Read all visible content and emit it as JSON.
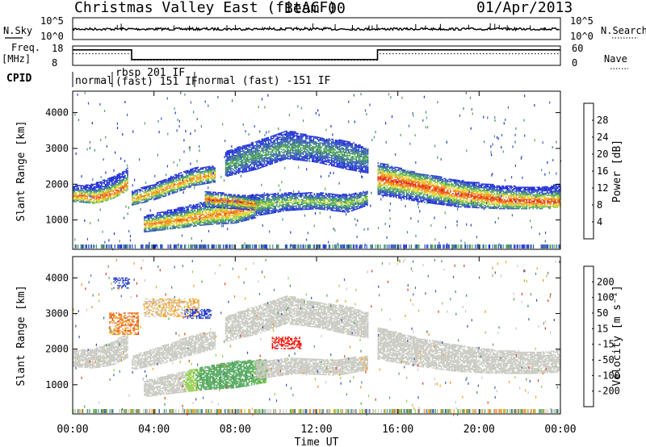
{
  "header": {
    "title": "Christmas Valley East (fitACF)",
    "beam": "Beam 00",
    "date": "01/Apr/2013"
  },
  "noise_panel": {
    "left_label": "N.Sky",
    "right_label": "N.Search",
    "left_ticks": [
      "10^5",
      "10^0"
    ],
    "right_ticks": [
      "10^5",
      "10^0"
    ]
  },
  "freq_panel": {
    "left_label_line1": "Freq.",
    "left_label_line2": "[MHz]",
    "right_label": "Nave",
    "left_ticks": [
      "18",
      "8"
    ],
    "right_ticks": [
      "60",
      "0"
    ],
    "freq_series": {
      "x": [
        0,
        2.9,
        2.9,
        15.0,
        15.0,
        24.0
      ],
      "y": [
        16,
        16,
        11,
        11,
        16,
        16
      ]
    },
    "nave_series": {
      "x": [
        0,
        2.9,
        2.9,
        15.0,
        15.0,
        24.0
      ],
      "y": [
        36,
        36,
        16,
        16,
        36,
        36
      ]
    }
  },
  "cpid_panel": {
    "label": "CPID",
    "segments": [
      {
        "label": "normal",
        "start": 0.0,
        "end": 2.7
      },
      {
        "label": "rbsp 201 IF",
        "start": 2.7,
        "end": 4.1,
        "second_line": "(fast) 151 IF"
      },
      {
        "label": "normal (fast) -151 IF",
        "start": 6.0,
        "end": 24.0
      }
    ]
  },
  "chart_data": [
    {
      "type": "heatmap",
      "name": "power",
      "ylabel": "Slant Range [km]",
      "xlabel": "Time UT",
      "ylim": [
        180,
        4600
      ],
      "yticks": [
        "1000",
        "2000",
        "3000",
        "4000"
      ],
      "xticks": [
        "00:00",
        "04:00",
        "08:00",
        "12:00",
        "16:00",
        "20:00",
        "00:00"
      ],
      "xlim": [
        0,
        24
      ],
      "colorbar": {
        "label": "Power [dB]",
        "ticks": [
          "4",
          "8",
          "12",
          "16",
          "20",
          "24",
          "28"
        ],
        "range": [
          0,
          32
        ],
        "colors": [
          "#1f2fd6",
          "#2f4fc8",
          "#3b63a8",
          "#3f8f74",
          "#4fa65a",
          "#8fcf4a",
          "#f2dd2e",
          "#f6b020",
          "#f08a1a",
          "#ea5a16",
          "#e2241a",
          "#ff0000"
        ]
      },
      "bands": [
        {
          "x": [
            0.0,
            0.5,
            1.0,
            1.5,
            2.0,
            2.5,
            2.7
          ],
          "y_low": [
            1500,
            1480,
            1450,
            1500,
            1600,
            1750,
            1850
          ],
          "y_high": [
            1950,
            1950,
            2000,
            2100,
            2200,
            2350,
            2450
          ],
          "peak": [
            1650,
            1650,
            1600,
            1650,
            1750,
            1900,
            2000
          ],
          "max_db": 26
        },
        {
          "x": [
            2.9,
            4.0,
            5.0,
            6.0,
            7.0
          ],
          "y_low": [
            1400,
            1550,
            1750,
            1950,
            2050
          ],
          "y_high": [
            1800,
            2000,
            2250,
            2450,
            2500
          ],
          "peak": [
            1550,
            1750,
            1950,
            2150,
            2250
          ],
          "max_db": 24
        },
        {
          "x": [
            3.5,
            5.0,
            6.5,
            8.0,
            9.0
          ],
          "y_low": [
            650,
            750,
            850,
            900,
            1050
          ],
          "y_high": [
            1100,
            1300,
            1500,
            1650,
            1700
          ],
          "peak": [
            850,
            950,
            1100,
            1200,
            1350
          ],
          "max_db": 25
        },
        {
          "x": [
            6.5,
            8.0,
            9.2
          ],
          "y_low": [
            1350,
            1300,
            1250
          ],
          "y_high": [
            1800,
            1700,
            1600
          ],
          "peak": [
            1550,
            1500,
            1400
          ],
          "max_db": 27
        },
        {
          "x": [
            9.0,
            10.5,
            12.0,
            13.5,
            14.5
          ],
          "y_low": [
            1100,
            1250,
            1300,
            1200,
            1400
          ],
          "y_high": [
            1700,
            1750,
            1750,
            1700,
            1800
          ],
          "peak": [
            1400,
            1500,
            1500,
            1450,
            1600
          ],
          "max_db": 16
        },
        {
          "x": [
            7.5,
            9.0,
            10.5,
            12.0,
            13.5,
            14.5
          ],
          "y_low": [
            2200,
            2400,
            2700,
            2600,
            2400,
            2300
          ],
          "y_high": [
            2900,
            3200,
            3500,
            3300,
            3200,
            3000
          ],
          "peak": [
            2500,
            2800,
            3000,
            3000,
            2800,
            2700
          ],
          "max_db": 12
        },
        {
          "x": [
            15.0,
            17.0,
            19.0,
            21.0,
            23.0,
            24.0
          ],
          "y_low": [
            1700,
            1500,
            1350,
            1300,
            1300,
            1350
          ],
          "y_high": [
            2600,
            2300,
            2100,
            1950,
            1900,
            2000
          ],
          "peak": [
            2150,
            1950,
            1700,
            1550,
            1500,
            1500
          ],
          "max_db": 28
        }
      ]
    },
    {
      "type": "heatmap",
      "name": "velocity",
      "ylabel": "Slant Range [km]",
      "xlabel": "Time UT",
      "ylim": [
        180,
        4600
      ],
      "yticks": [
        "1000",
        "2000",
        "3000",
        "4000"
      ],
      "xticks": [
        "00:00",
        "04:00",
        "08:00",
        "12:00",
        "16:00",
        "20:00",
        "00:00"
      ],
      "xlim": [
        0,
        24
      ],
      "colorbar": {
        "label": "Velocity [m s⁻¹]",
        "ticks": [
          "200",
          "100",
          "50",
          "15",
          "-15",
          "-50",
          "-100",
          "-200"
        ],
        "range": [
          -250,
          250
        ],
        "colors": [
          "#ff0000",
          "#e83a1a",
          "#f08a1a",
          "#f6a020",
          "#c8c8c0",
          "#c8c8c0",
          "#8fcf4a",
          "#4fa65a",
          "#3f8f74",
          "#3b63a8",
          "#2f4fc8",
          "#1f2fd6"
        ]
      },
      "bands": [
        {
          "x": [
            0.0,
            1.0,
            2.0,
            2.7
          ],
          "y_low": [
            1500,
            1450,
            1550,
            1750
          ],
          "y_high": [
            1950,
            2000,
            2200,
            2450
          ],
          "vel": [
            0,
            0,
            -5,
            -10
          ]
        },
        {
          "x": [
            2.9,
            4.5,
            6.0,
            7.0
          ],
          "y_low": [
            1400,
            1600,
            1850,
            2000
          ],
          "y_high": [
            1800,
            2100,
            2400,
            2500
          ],
          "vel": [
            0,
            -5,
            0,
            0
          ]
        },
        {
          "x": [
            3.5,
            5.0,
            6.5,
            8.0,
            9.5
          ],
          "y_low": [
            650,
            750,
            850,
            900,
            1050
          ],
          "y_high": [
            1100,
            1300,
            1500,
            1650,
            1700
          ],
          "vel": [
            -20,
            -10,
            60,
            60,
            40
          ]
        },
        {
          "x": [
            9.0,
            11.0,
            13.0,
            14.5
          ],
          "y_low": [
            1150,
            1300,
            1250,
            1400
          ],
          "y_high": [
            1650,
            1750,
            1700,
            1800
          ],
          "vel": [
            0,
            0,
            -60,
            -80
          ]
        },
        {
          "x": [
            7.5,
            9.0,
            10.5,
            12.0,
            13.5,
            14.5
          ],
          "y_low": [
            2200,
            2400,
            2700,
            2600,
            2400,
            2300
          ],
          "y_high": [
            2900,
            3200,
            3500,
            3300,
            3200,
            3000
          ],
          "vel": [
            -40,
            -60,
            -40,
            -50,
            -70,
            -60
          ]
        },
        {
          "x": [
            15.0,
            17.0,
            19.0,
            21.0,
            23.0,
            24.0
          ],
          "y_low": [
            1700,
            1500,
            1350,
            1300,
            1300,
            1350
          ],
          "y_high": [
            2600,
            2300,
            2100,
            1950,
            1900,
            2000
          ],
          "vel": [
            0,
            0,
            0,
            0,
            0,
            0
          ]
        }
      ],
      "highlights": [
        {
          "x": [
            1.8,
            3.2
          ],
          "y": [
            2400,
            3000
          ],
          "vel": -150
        },
        {
          "x": [
            3.5,
            6.2
          ],
          "y": [
            2900,
            3400
          ],
          "vel": -90
        },
        {
          "x": [
            5.5,
            6.8
          ],
          "y": [
            2850,
            3100
          ],
          "vel": 220
        },
        {
          "x": [
            2.0,
            2.8
          ],
          "y": [
            3700,
            4000
          ],
          "vel": 200
        },
        {
          "x": [
            9.8,
            11.2
          ],
          "y": [
            2000,
            2350
          ],
          "vel": -220
        }
      ]
    }
  ]
}
